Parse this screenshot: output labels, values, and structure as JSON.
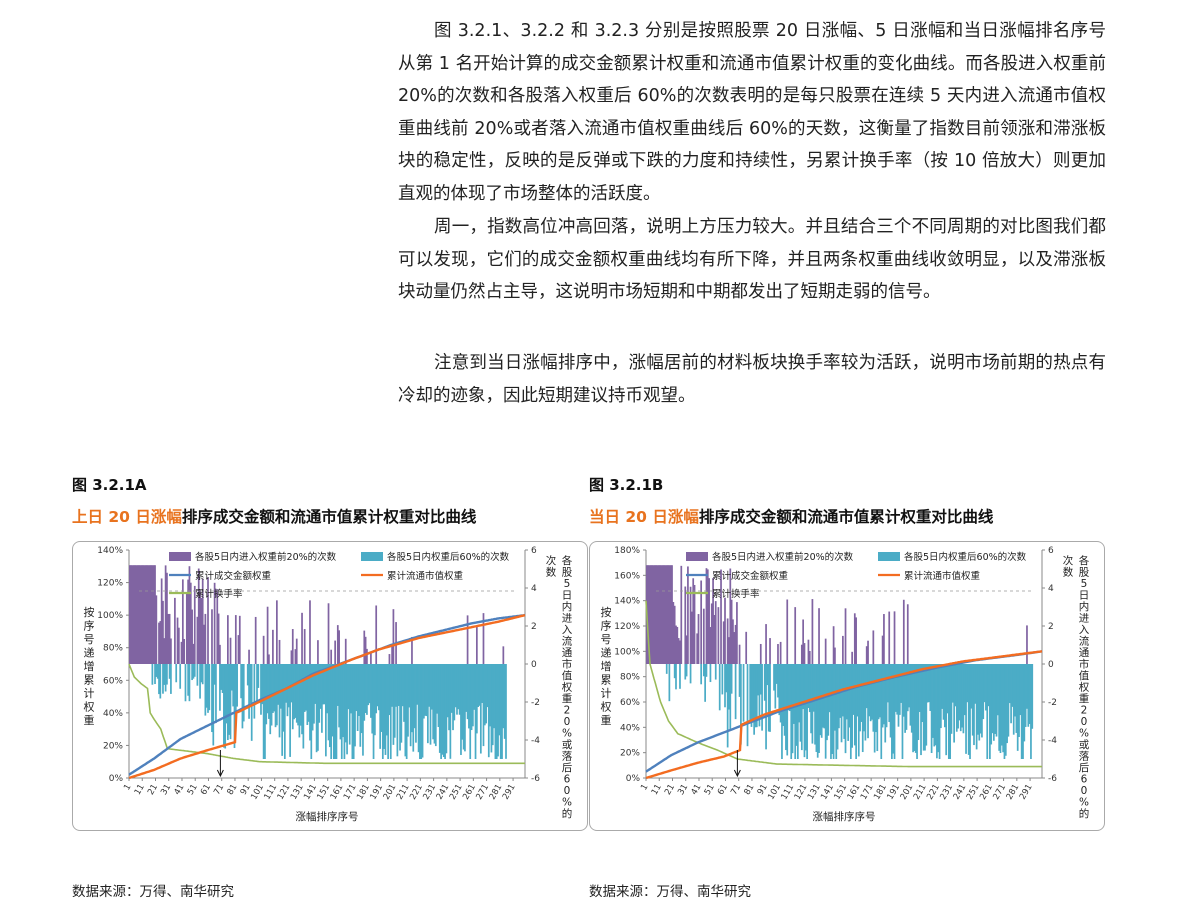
{
  "paragraphs": [
    "图 3.2.1、3.2.2 和 3.2.3 分别是按照股票 20 日涨幅、5 日涨幅和当日涨幅排名序号从第 1 名开始计算的成交金额累计权重和流通市值累计权重的变化曲线。而各股进入权重前 20%的次数和各股落入权重后 60%的次数表明的是每只股票在连续 5 天内进入流通市值权重曲线前 20%或者落入流通市值权重曲线后 60%的天数，这衡量了指数目前领涨和滞涨板块的稳定性，反映的是反弹或下跌的力度和持续性，另累计换手率（按 10 倍放大）则更加直观的体现了市场整体的活跃度。",
    "周一，指数高位冲高回落，说明上方压力较大。并且结合三个不同周期的对比图我们都可以发现，它们的成交金额权重曲线均有所下降，并且两条权重曲线收敛明显，以及滞涨板块动量仍然占主导，这说明市场短期和中期都发出了短期走弱的信号。",
    "注意到当日涨幅排序中，涨幅居前的材料板块换手率较为活跃，说明市场前期的热点有冷却的迹象，因此短期建议持币观望。"
  ],
  "figures": [
    {
      "label": "图 3.2.1A",
      "title_highlight": "上日 20 日涨幅",
      "title_rest": "排序成交金额和流通市值累计权重对比曲线",
      "source": "数据来源：万得、南华研究"
    },
    {
      "label": "图 3.2.1B",
      "title_highlight": "当日 20 日涨幅",
      "title_rest": "排序成交金额和流通市值累计权重对比曲线",
      "source": "数据来源：万得、南华研究"
    }
  ],
  "colors": {
    "purple": "#8064a2",
    "teal": "#4bacc6",
    "blue": "#4f81bd",
    "orange": "#f79646",
    "orange_line": "#f36c21",
    "green": "#9bbb59",
    "title_highlight": "#e8731f"
  },
  "chart_data": [
    {
      "type": "area",
      "left_ylabel": "按序号递增累计权重",
      "right_ylabel": "各股5日内进入流通市值权重20%或落后60%的次数",
      "xlabel": "涨幅排序序号",
      "y_ticks": [
        "0%",
        "20%",
        "40%",
        "60%",
        "80%",
        "100%",
        "120%",
        "140%"
      ],
      "ylim": [
        0,
        140
      ],
      "y2_ticks": [
        "-6",
        "-4",
        "-2",
        "0",
        "2",
        "4",
        "6"
      ],
      "y2lim": [
        -6,
        6
      ],
      "x_ticks": [
        "1",
        "11",
        "21",
        "31",
        "41",
        "51",
        "61",
        "71",
        "81",
        "91",
        "101",
        "111",
        "121",
        "131",
        "141",
        "151",
        "161",
        "171",
        "181",
        "191",
        "201",
        "211",
        "221",
        "231",
        "241",
        "251",
        "261",
        "271",
        "281",
        "291"
      ],
      "xlim": [
        1,
        300
      ],
      "legend": [
        "各股5日内进入权重前20%的次数",
        "各股5日内权重后60%的次数",
        "累计成交金额权重",
        "累计流通市值权重",
        "累计换手率"
      ],
      "series": [
        {
          "name": "累计成交金额权重",
          "x": [
            1,
            20,
            40,
            60,
            80,
            100,
            120,
            140,
            160,
            180,
            200,
            220,
            240,
            260,
            280,
            300
          ],
          "values": [
            2,
            12,
            24,
            32,
            40,
            48,
            55,
            64,
            70,
            76,
            82,
            87,
            91,
            95,
            98,
            100
          ]
        },
        {
          "name": "累计流通市值权重",
          "x": [
            1,
            20,
            40,
            60,
            81,
            82,
            100,
            120,
            140,
            170,
            190,
            220,
            250,
            280,
            300
          ],
          "values": [
            0,
            5,
            12,
            17,
            22,
            40,
            47,
            55,
            63,
            73,
            79,
            86,
            91,
            96,
            100
          ]
        },
        {
          "name": "累计换手率",
          "x": [
            1,
            5,
            10,
            15,
            17,
            20,
            25,
            30,
            60,
            80,
            100,
            150,
            200,
            250,
            300
          ],
          "values": [
            70,
            62,
            58,
            55,
            40,
            36,
            30,
            18,
            15,
            12,
            10,
            9,
            9,
            9,
            9
          ]
        }
      ]
    },
    {
      "type": "area",
      "left_ylabel": "按序号递增累计权重",
      "right_ylabel": "各股5日内进入流通市值权重20%或落后60%的次数",
      "xlabel": "涨幅排序序号",
      "y_ticks": [
        "0%",
        "20%",
        "40%",
        "60%",
        "80%",
        "100%",
        "120%",
        "140%",
        "160%",
        "180%"
      ],
      "ylim": [
        0,
        180
      ],
      "y2_ticks": [
        "-6",
        "-4",
        "-2",
        "0",
        "2",
        "4",
        "6"
      ],
      "y2lim": [
        -6,
        6
      ],
      "x_ticks": [
        "1",
        "11",
        "21",
        "31",
        "41",
        "51",
        "61",
        "71",
        "81",
        "91",
        "101",
        "111",
        "121",
        "131",
        "141",
        "151",
        "161",
        "171",
        "181",
        "191",
        "201",
        "211",
        "221",
        "231",
        "241",
        "251",
        "261",
        "271",
        "281",
        "291"
      ],
      "xlim": [
        1,
        300
      ],
      "legend": [
        "各股5日内进入权重前20%的次数",
        "各股5日内权重后60%的次数",
        "累计成交金额权重",
        "累计流通市值权重",
        "累计换手率"
      ],
      "series": [
        {
          "name": "累计成交金额权重",
          "x": [
            1,
            20,
            40,
            60,
            80,
            100,
            130,
            160,
            190,
            220,
            250,
            280,
            300
          ],
          "values": [
            5,
            18,
            28,
            36,
            44,
            52,
            62,
            72,
            80,
            87,
            93,
            97,
            100
          ]
        },
        {
          "name": "累计流通市值权重",
          "x": [
            1,
            20,
            40,
            60,
            72,
            73,
            90,
            120,
            150,
            180,
            210,
            240,
            270,
            300
          ],
          "values": [
            0,
            6,
            12,
            17,
            22,
            42,
            50,
            60,
            70,
            78,
            86,
            92,
            96,
            100
          ]
        },
        {
          "name": "累计换手率",
          "x": [
            1,
            4,
            8,
            12,
            18,
            25,
            40,
            55,
            70,
            100,
            150,
            200,
            250,
            300
          ],
          "values": [
            140,
            90,
            75,
            60,
            45,
            35,
            28,
            22,
            15,
            11,
            10,
            9,
            9,
            9
          ]
        }
      ]
    }
  ]
}
